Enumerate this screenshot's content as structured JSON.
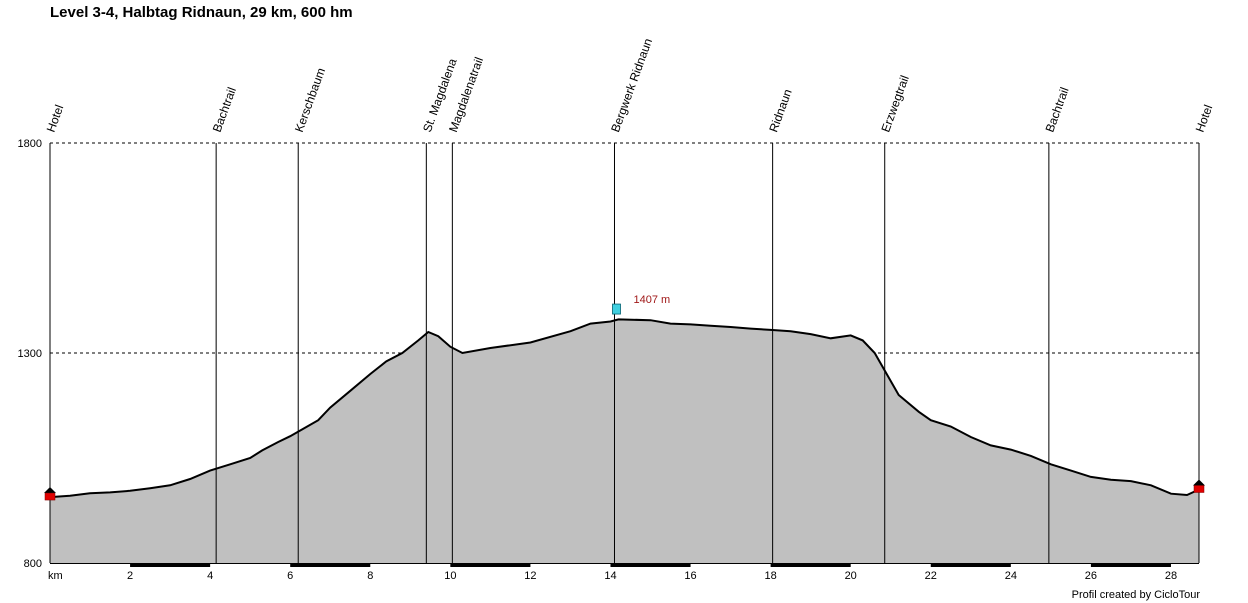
{
  "chart_data": {
    "type": "area",
    "title": "Level 3-4, Halbtag Ridnaun, 29 km, 600 hm",
    "xlabel": "km",
    "ylabel": "",
    "xlim": [
      0,
      28.7
    ],
    "ylim": [
      800,
      1800
    ],
    "y_ticks": [
      "800",
      "1300",
      "1800"
    ],
    "x_ticks": [
      "2",
      "4",
      "6",
      "8",
      "10",
      "12",
      "14",
      "16",
      "18",
      "20",
      "22",
      "24",
      "26",
      "28"
    ],
    "grid": "horizontal dashed at 1300 and 1800",
    "fill_color": "#c0c0c0",
    "line_color": "#000000",
    "profile": {
      "x": [
        0,
        0.5,
        1,
        1.5,
        2,
        2.5,
        3,
        3.5,
        4,
        4.5,
        5,
        5.3,
        5.7,
        6,
        6.3,
        6.7,
        7,
        7.5,
        8,
        8.4,
        8.8,
        9.2,
        9.45,
        9.7,
        10,
        10.3,
        11,
        12,
        13,
        13.5,
        14,
        14.2,
        15,
        15.5,
        16,
        16.5,
        17,
        17.5,
        18,
        18.5,
        19,
        19.5,
        20,
        20.3,
        20.6,
        20.9,
        21.2,
        21.7,
        22,
        22.5,
        23,
        23.5,
        24,
        24.5,
        25,
        25.5,
        26,
        26.5,
        27,
        27.5,
        28,
        28.4,
        28.7
      ],
      "y": [
        957,
        960,
        966,
        968,
        972,
        978,
        985,
        1000,
        1020,
        1035,
        1050,
        1068,
        1088,
        1102,
        1118,
        1140,
        1170,
        1210,
        1250,
        1280,
        1300,
        1330,
        1350,
        1340,
        1315,
        1300,
        1312,
        1325,
        1352,
        1370,
        1375,
        1380,
        1378,
        1370,
        1368,
        1365,
        1362,
        1358,
        1355,
        1352,
        1345,
        1335,
        1342,
        1330,
        1300,
        1250,
        1200,
        1160,
        1140,
        1125,
        1100,
        1080,
        1070,
        1055,
        1035,
        1020,
        1005,
        998,
        995,
        985,
        965,
        962,
        975
      ]
    },
    "waypoints": [
      {
        "km": 0,
        "name": "Hotel"
      },
      {
        "km": 4.15,
        "name": "Bachtrail"
      },
      {
        "km": 6.2,
        "name": "Kerschbaum"
      },
      {
        "km": 9.4,
        "name": "St. Magdalena"
      },
      {
        "km": 10.05,
        "name": "Magdalenatrail"
      },
      {
        "km": 14.1,
        "name": "Bergwerk Ridnaun"
      },
      {
        "km": 18.05,
        "name": "Ridnaun"
      },
      {
        "km": 20.85,
        "name": "Erzwegtrail"
      },
      {
        "km": 24.95,
        "name": "Bachtrail"
      },
      {
        "km": 28.7,
        "name": "Hotel"
      }
    ],
    "annotations": [
      {
        "km": 14.15,
        "elevation": 1407,
        "text": "1407 m",
        "color": "#a01818"
      }
    ]
  },
  "credit": "Profil created by CicloTour"
}
